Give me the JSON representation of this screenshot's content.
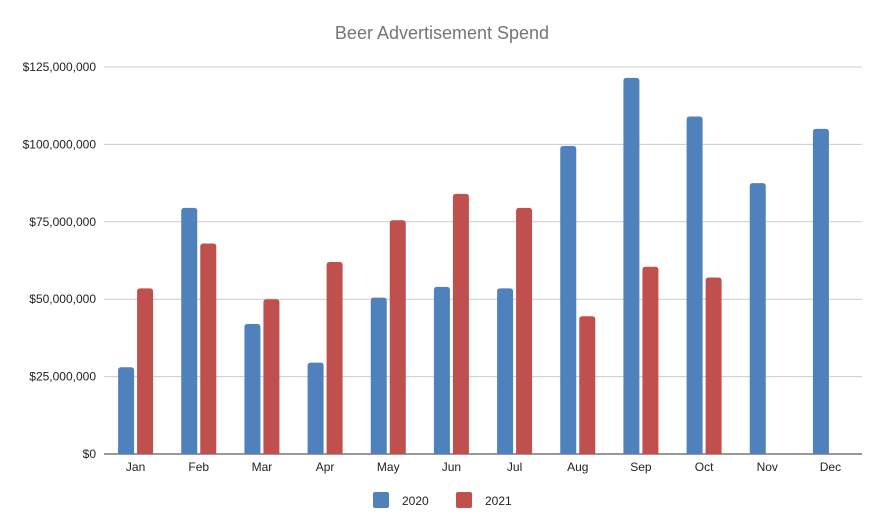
{
  "chart_data": {
    "type": "bar",
    "title": "Beer Advertisement Spend",
    "xlabel": "",
    "ylabel": "",
    "categories": [
      "Jan",
      "Feb",
      "Mar",
      "Apr",
      "May",
      "Jun",
      "Jul",
      "Aug",
      "Sep",
      "Oct",
      "Nov",
      "Dec"
    ],
    "series": [
      {
        "name": "2020",
        "color": "#4f81bd",
        "values": [
          28000000,
          79500000,
          42000000,
          29500000,
          50500000,
          54000000,
          53500000,
          99500000,
          121500000,
          109000000,
          87500000,
          105000000
        ]
      },
      {
        "name": "2021",
        "color": "#c0504d",
        "values": [
          53500000,
          68000000,
          50000000,
          62000000,
          75500000,
          84000000,
          79500000,
          44500000,
          60500000,
          57000000,
          null,
          null
        ]
      }
    ],
    "ylim": [
      0,
      125000000
    ],
    "yticks": [
      0,
      25000000,
      50000000,
      75000000,
      100000000,
      125000000
    ],
    "ytick_labels": [
      "$0",
      "$25,000,000",
      "$50,000,000",
      "$75,000,000",
      "$100,000,000",
      "$125,000,000"
    ],
    "grid": true,
    "legend_position": "bottom"
  }
}
